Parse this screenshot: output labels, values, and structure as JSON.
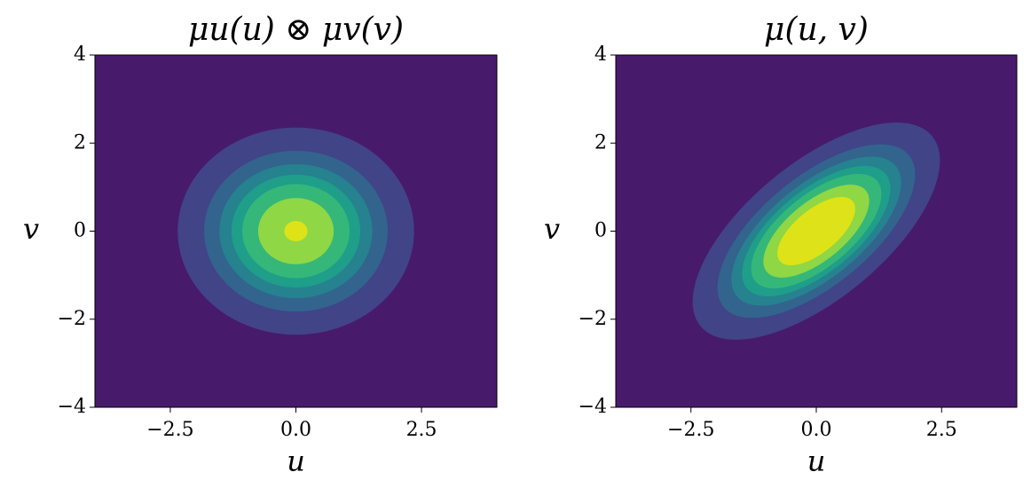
{
  "chart_data": [
    {
      "type": "contour",
      "title": "μu(u) ⊗ μv(v)",
      "xlabel": "u",
      "ylabel": "v",
      "xlim": [
        -4,
        4
      ],
      "ylim": [
        -4,
        4
      ],
      "xticks": [
        {
          "value": -2.5,
          "label": "−2.5"
        },
        {
          "value": 0,
          "label": "0.0"
        },
        2.5
      ],
      "yticks": [
        {
          "value": -4,
          "label": "−4"
        },
        {
          "value": -2,
          "label": "−2"
        },
        0,
        2,
        4
      ],
      "mean": [
        0,
        0
      ],
      "sigma": [
        1,
        1
      ],
      "rho": 0,
      "levels": [
        0.01,
        0.03,
        0.05,
        0.07,
        0.09,
        0.12,
        0.155
      ],
      "colors": [
        "#481a6c",
        "#414487",
        "#32648e",
        "#26828e",
        "#1f9e89",
        "#35b779",
        "#8fd744",
        "#dde318"
      ]
    },
    {
      "type": "contour",
      "title": "μ(u, v)",
      "xlabel": "u",
      "ylabel": "v",
      "xlim": [
        -4,
        4
      ],
      "ylim": [
        -4,
        4
      ],
      "xticks": [
        {
          "value": -2.5,
          "label": "−2.5"
        },
        {
          "value": 0,
          "label": "0.0"
        },
        2.5
      ],
      "yticks": [
        {
          "value": -4,
          "label": "−4"
        },
        {
          "value": -2,
          "label": "−2"
        },
        0,
        2,
        4
      ],
      "mean": [
        0,
        0
      ],
      "sigma": [
        1,
        1
      ],
      "rho": 0.65,
      "levels": [
        0.01,
        0.03,
        0.05,
        0.07,
        0.09,
        0.12,
        0.155
      ],
      "colors": [
        "#481a6c",
        "#414487",
        "#32648e",
        "#26828e",
        "#1f9e89",
        "#35b779",
        "#8fd744",
        "#dde318"
      ]
    }
  ]
}
